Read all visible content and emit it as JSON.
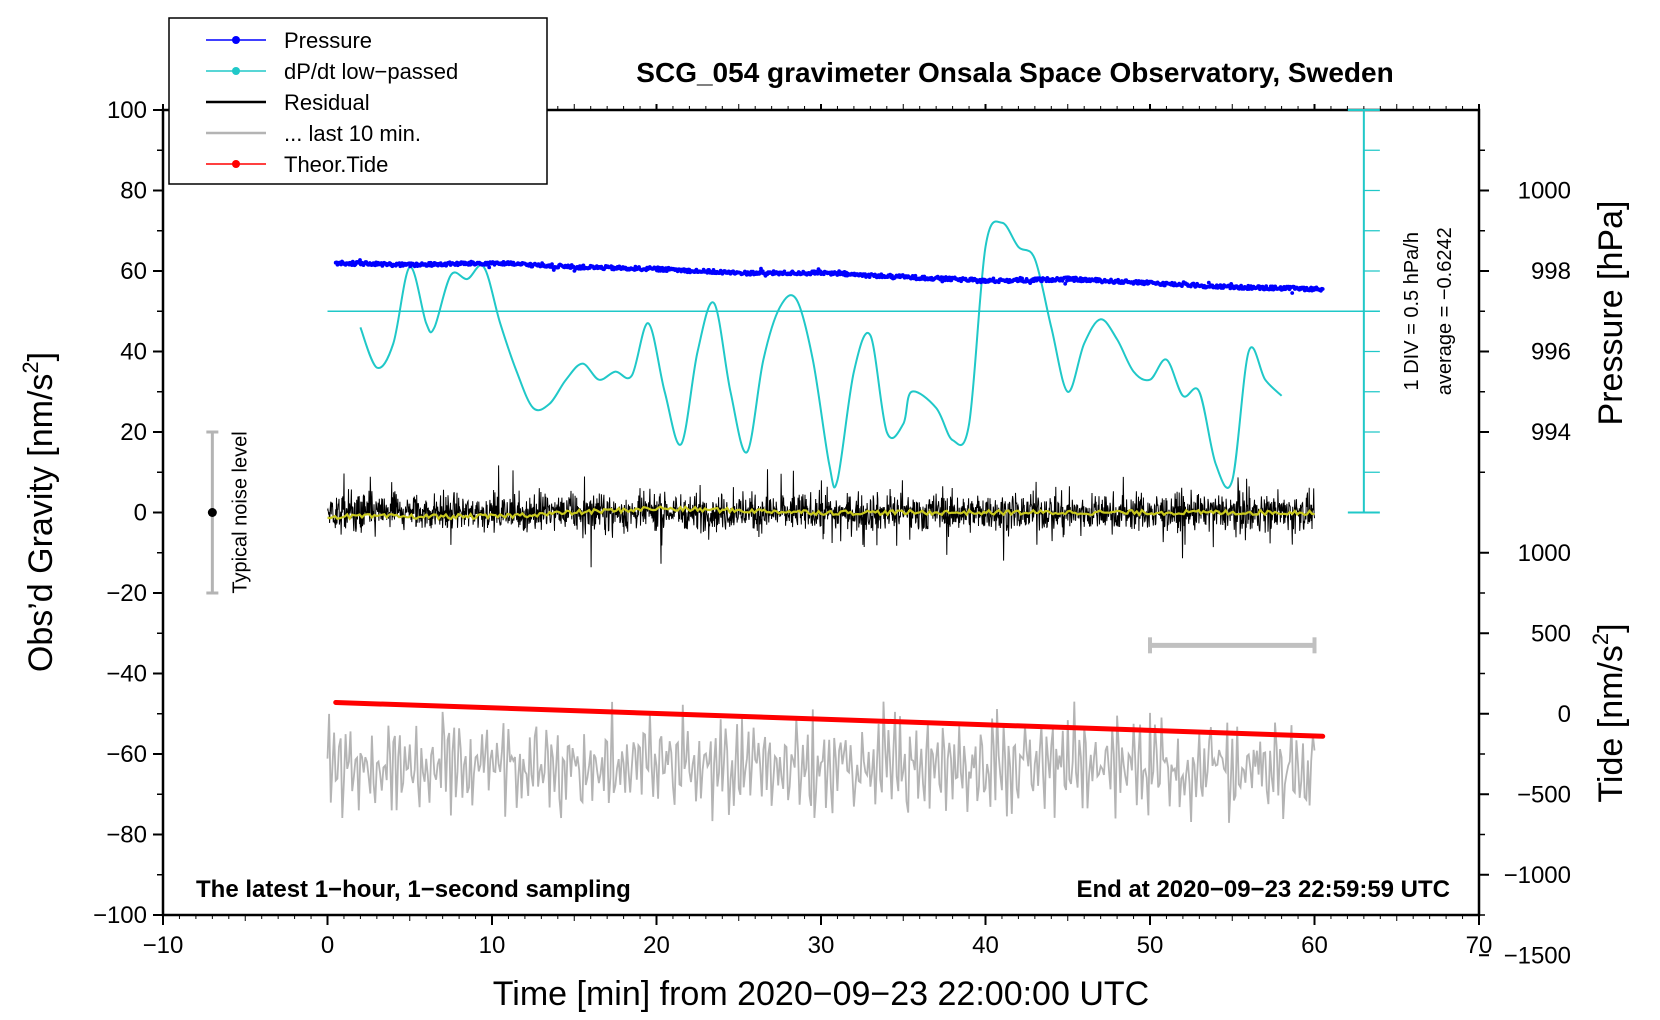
{
  "chart_data": {
    "type": "line",
    "title": "SCG_054 gravimeter Onsala Space Observatory, Sweden",
    "xlabel": "Time [min] from 2020−09−23 22:00:00 UTC",
    "ylabel_left": "Obs’d Gravity [nm/s",
    "ylabel_left_sup": "2",
    "ylabel_left_tail": "]",
    "ylabel_right_top": "Pressure [hPa]",
    "ylabel_right_bottom": "Tide [nm/s",
    "ylabel_right_bottom_sup": "2",
    "ylabel_right_bottom_tail": "]",
    "xlim": [
      -10,
      70
    ],
    "ylim": [
      -100,
      100
    ],
    "x_ticks": [
      -10,
      0,
      10,
      20,
      30,
      40,
      50,
      60,
      70
    ],
    "x_tick_labels": [
      "−10",
      "0",
      "10",
      "20",
      "30",
      "40",
      "50",
      "60",
      "70"
    ],
    "y_ticks": [
      -100,
      -80,
      -60,
      -40,
      -20,
      0,
      20,
      40,
      60,
      80,
      100
    ],
    "y_tick_labels": [
      "−100",
      "−80",
      "−60",
      "−40",
      "−20",
      "0",
      "20",
      "40",
      "60",
      "80",
      "100"
    ],
    "pressure_axis": {
      "range_hPa": [
        994,
        1000
      ],
      "ticks": [
        994,
        996,
        998,
        1000
      ],
      "tick_labels": [
        "994",
        "996",
        "998",
        "1000"
      ],
      "gravity_at_994": 20,
      "gravity_per_hPa": 10
    },
    "tide_axis": {
      "ticks": [
        -1500,
        -1000,
        -500,
        0,
        500,
        1000
      ],
      "tick_labels": [
        "−1500",
        "−1000",
        "−500",
        "0",
        "500",
        "1000"
      ],
      "gravity_at_zero": -50,
      "gravity_per_unit": 0.04
    },
    "dpdt_scale": {
      "label_div": "1 DIV = 0.5 hPa/h",
      "label_avg": "average = −0.6242",
      "x_min": 63,
      "y_range": [
        0,
        100
      ],
      "divisions": 10,
      "average_y": 50
    },
    "noise_bar": {
      "label": "Typical noise level",
      "x": -7,
      "center": 0,
      "range": [
        -20,
        20
      ]
    },
    "last10_bar": {
      "x_range": [
        50,
        60
      ],
      "y": -33
    },
    "notes": {
      "left": "The latest 1−hour, 1−second sampling",
      "right": "End at 2020−09−23 22:59:59 UTC"
    },
    "legend": [
      {
        "label": "Pressure",
        "color": "#0000ff",
        "marker": true
      },
      {
        "label": "dP/dt low−passed",
        "color": "#20c8c8",
        "marker": true
      },
      {
        "label": "Residual",
        "color": "#000000",
        "marker": false
      },
      {
        "label": "... last 10 min.",
        "color": "#b4b4b4",
        "marker": false
      },
      {
        "label": "Theor.Tide",
        "color": "#ff0000",
        "marker": true
      }
    ],
    "series": [
      {
        "name": "Pressure",
        "unit": "hPa",
        "color": "#0000ff",
        "x": [
          0.5,
          5,
          10,
          15,
          20,
          25,
          30,
          35,
          38,
          40,
          45,
          50,
          55,
          60.5
        ],
        "values": [
          998.2,
          998.15,
          998.2,
          998.1,
          998.05,
          997.95,
          997.95,
          997.85,
          997.8,
          997.75,
          997.8,
          997.7,
          997.6,
          997.55
        ]
      },
      {
        "name": "dP/dt low−passed",
        "unit": "gravity-axis units (1 DIV = 0.5 hPa/h)",
        "color": "#20c8c8",
        "x": [
          2,
          3,
          4,
          5,
          6,
          6.5,
          7.5,
          8.5,
          9.5,
          10.5,
          11.5,
          12.5,
          13.5,
          14.5,
          15.5,
          16.5,
          17.5,
          18.5,
          19.5,
          20.5,
          21.5,
          22.5,
          23.5,
          24.5,
          25.5,
          26.5,
          27.5,
          28.5,
          29.5,
          30.5,
          31,
          32,
          33,
          34,
          35,
          35.5,
          37,
          38,
          39,
          40,
          41,
          42,
          43,
          44,
          45,
          46,
          47,
          48,
          49,
          50,
          51,
          52,
          53,
          54,
          55,
          56,
          57,
          58
        ],
        "values": [
          46,
          36,
          42,
          61,
          47,
          46,
          59,
          58,
          61,
          47,
          35,
          26,
          27,
          33,
          37,
          33,
          35,
          34,
          47,
          30,
          17,
          40,
          52,
          30,
          15,
          38,
          51,
          53,
          38,
          12,
          8,
          35,
          44,
          20,
          22,
          30,
          26,
          18,
          22,
          66,
          72,
          66,
          63,
          46,
          30,
          42,
          48,
          43,
          35,
          33,
          38,
          29,
          30,
          12,
          8,
          40,
          33,
          29
        ]
      },
      {
        "name": "Residual",
        "unit": "nm/s²",
        "color": "#000000",
        "x_range": [
          0,
          60
        ],
        "amplitude_range": [
          -17,
          15
        ]
      },
      {
        "name": "Residual smoothed",
        "unit": "nm/s²",
        "color": "#c8c81e",
        "x": [
          0,
          10,
          20,
          30,
          40,
          50,
          60
        ],
        "values": [
          -1,
          -1,
          1,
          0,
          0,
          0,
          0
        ]
      },
      {
        "name": "... last 10 min.",
        "unit": "nm/s²",
        "color": "#b4b4b4",
        "x_range": [
          0,
          60
        ],
        "center": -63,
        "amplitude_range": [
          -78,
          -47
        ]
      },
      {
        "name": "Theor.Tide",
        "unit": "nm/s²",
        "color": "#ff0000",
        "x": [
          0.5,
          60.5
        ],
        "tide_values": [
          70,
          -140
        ]
      }
    ]
  }
}
